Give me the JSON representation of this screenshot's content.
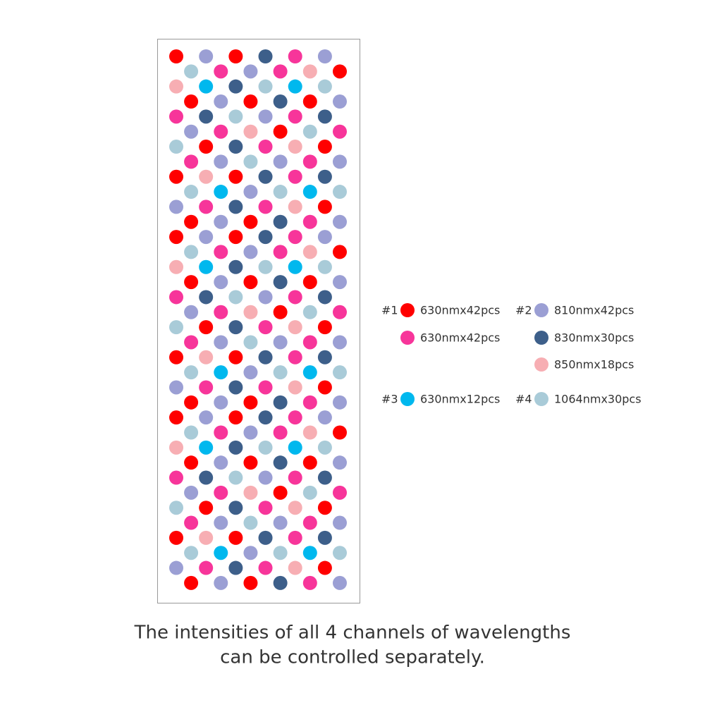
{
  "legend": {
    "channels": [
      {
        "label": "#1",
        "items": [
          "630nmx42pcs",
          "630nmx42pcs"
        ]
      },
      {
        "label": "#2",
        "items": [
          "810nmx42pcs",
          "830nmx30pcs",
          "850nmx18pcs"
        ]
      },
      {
        "label": "#3",
        "items": [
          "630nmx12pcs"
        ]
      },
      {
        "label": "#4",
        "items": [
          "1064nmx30pcs"
        ]
      }
    ]
  },
  "caption": [
    "The intensities of all 4 channels of wavelengths",
    "can be controlled separately."
  ]
}
